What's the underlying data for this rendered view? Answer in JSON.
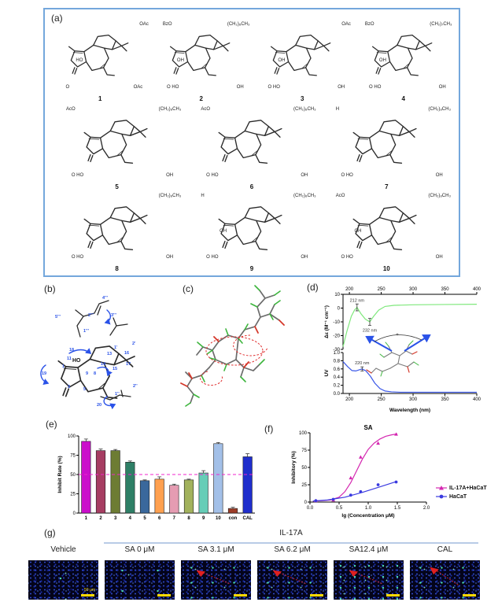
{
  "panels": {
    "a": {
      "label": "(a)",
      "compounds": [
        {
          "num": "1",
          "tl": "",
          "tr": "OAc",
          "ml": "HO",
          "bl": "O",
          "br": "OAc"
        },
        {
          "num": "2",
          "tl": "BzO",
          "tr": "(CH₂)₈CH₃",
          "ml": "OH",
          "bl": "O HO",
          "br": "OH"
        },
        {
          "num": "3",
          "tl": "",
          "tr": "OAc",
          "ml": "OH",
          "bl": "O HO",
          "br": "OH"
        },
        {
          "num": "4",
          "tl": "BzO",
          "tr": "(CH₂)₇CH₃",
          "ml": "OH",
          "bl": "O HO",
          "br": "OH"
        },
        {
          "num": "5",
          "tl": "AcO",
          "tr": "(CH₂)₈CH₃",
          "ml": "",
          "bl": "O HO",
          "br": "OH"
        },
        {
          "num": "6",
          "tl": "AcO",
          "tr": "(CH₂)₈CH₃",
          "ml": "",
          "bl": "O HO",
          "br": "OH"
        },
        {
          "num": "7",
          "tl": "H",
          "tr": "(CH₂)₈CH₃",
          "ml": "",
          "bl": "O HO",
          "br": "OH"
        },
        {
          "num": "8",
          "tl": "",
          "tr": "(CH₂)₈CH₃",
          "ml": "",
          "bl": "O HO",
          "br": "OH"
        },
        {
          "num": "9",
          "tl": "H",
          "tr": "(CH₂)₈CH₃",
          "ml": "OH",
          "bl": "O HO",
          "br": "OH"
        },
        {
          "num": "10",
          "tl": "AcO",
          "tr": "(CH₂)₈CH₃",
          "ml": "OH",
          "bl": "O HO",
          "br": "OH"
        }
      ]
    },
    "b": {
      "label": "(b)",
      "hydroxyl": "HO",
      "locants": [
        "4'''",
        "3'''",
        "2'''",
        "5'''",
        "1'''",
        "2'",
        "1'",
        "16",
        "13",
        "11",
        "18",
        "17",
        "15",
        "14",
        "9",
        "8",
        "1",
        "19",
        "3",
        "5",
        "2''",
        "1''",
        "20"
      ]
    },
    "c": {
      "label": "(c)"
    },
    "d": {
      "label": "(d)",
      "inset_plus": "+"
    },
    "e": {
      "label": "(e)"
    },
    "f": {
      "label": "(f)"
    },
    "g": {
      "label": "(g)",
      "group_title": "IL-17A",
      "columns": [
        "Vehicle",
        "SA 0 μM",
        "SA 3.1 μM",
        "SA 6.2 μM",
        "SA12.4 μM",
        "CAL"
      ],
      "scale_bar": "50 μm"
    }
  },
  "chart_data": [
    {
      "id": "cd",
      "type": "line",
      "xaxis": "top",
      "xlim": [
        190,
        400
      ],
      "ylim": [
        -30,
        10
      ],
      "xticks": [
        200,
        250,
        300,
        350,
        400
      ],
      "yticks": [
        10,
        0,
        -10,
        -20,
        -30
      ],
      "xtickfmt": 0,
      "ytickfmt": 0,
      "ylabel": "Δε (M⁻¹ cm⁻¹)",
      "series": [
        {
          "name": "CD",
          "color": "#7fe87c",
          "curve": [
            [
              190,
              -28
            ],
            [
              196,
              -17
            ],
            [
              203,
              -6
            ],
            [
              208,
              -1.5
            ],
            [
              212,
              0.5
            ],
            [
              218,
              -4
            ],
            [
              225,
              -8
            ],
            [
              232,
              -10
            ],
            [
              238,
              -6
            ],
            [
              246,
              -1.5
            ],
            [
              256,
              1.2
            ],
            [
              270,
              2
            ],
            [
              300,
              2.4
            ],
            [
              350,
              2.6
            ],
            [
              400,
              2.8
            ]
          ]
        }
      ],
      "annotations": [
        {
          "x": 212,
          "y": 0.5,
          "err": 2.5,
          "label": "212 nm",
          "pos": "above"
        },
        {
          "x": 232,
          "y": -10,
          "err": 2.5,
          "label": "232 nm",
          "pos": "below"
        }
      ]
    },
    {
      "id": "uv",
      "type": "line",
      "xaxis": "bottom",
      "xlim": [
        190,
        400
      ],
      "ylim": [
        0,
        1
      ],
      "xticks": [
        200,
        250,
        300,
        350,
        400
      ],
      "yticks": [
        1.0,
        0.8,
        0.6,
        0.4,
        0.2,
        0.0
      ],
      "xtickfmt": 0,
      "ytickfmt": 1,
      "ylabel": "UV",
      "xlabel": "Wavelength (nm)",
      "series": [
        {
          "name": "UV",
          "color": "#3a57e8",
          "curve": [
            [
              190,
              0.78
            ],
            [
              197,
              0.66
            ],
            [
              204,
              0.56
            ],
            [
              210,
              0.55
            ],
            [
              216,
              0.58
            ],
            [
              220,
              0.6
            ],
            [
              226,
              0.55
            ],
            [
              233,
              0.42
            ],
            [
              240,
              0.25
            ],
            [
              248,
              0.12
            ],
            [
              256,
              0.06
            ],
            [
              266,
              0.04
            ],
            [
              280,
              0.03
            ],
            [
              320,
              0.03
            ],
            [
              400,
              0.03
            ]
          ]
        }
      ],
      "annotations": [
        {
          "x": 220,
          "y": 0.6,
          "err": 0.05,
          "label": "220 nm",
          "pos": "above"
        }
      ]
    },
    {
      "id": "inhibit",
      "type": "bar",
      "ylabel": "Inhibit Rate (%)",
      "ylim": [
        0,
        100
      ],
      "yticks": [
        0,
        25,
        50,
        75,
        100
      ],
      "ytickfmt": 0,
      "categories": [
        "1",
        "2",
        "3",
        "4",
        "5",
        "6",
        "7",
        "8",
        "9",
        "10",
        "con",
        "CAL"
      ],
      "values": [
        93,
        81,
        81,
        66,
        42,
        44,
        36,
        43,
        52,
        90,
        6,
        73
      ],
      "errors": [
        3,
        2,
        1.5,
        1.5,
        1,
        3,
        1.5,
        1,
        3,
        1.5,
        1.5,
        4
      ],
      "colors": [
        "#cb0ecb",
        "#a63d62",
        "#6d7c33",
        "#2e7f66",
        "#3a689c",
        "#ffa04f",
        "#e59cb2",
        "#a2b25c",
        "#66cdb7",
        "#a3c0e8",
        "#9c3d28",
        "#1f2ecc"
      ],
      "refline": {
        "y": 50,
        "color": "#f224cc"
      }
    },
    {
      "id": "dose",
      "type": "line",
      "xaxis": "bottom",
      "title": "SA",
      "xlim": [
        0,
        2
      ],
      "ylim": [
        0,
        100
      ],
      "xticks": [
        0.0,
        0.5,
        1.0,
        1.5,
        2.0
      ],
      "yticks": [
        0,
        25,
        50,
        75,
        100
      ],
      "xtickfmt": 1,
      "ytickfmt": 0,
      "xlabel": "lg (Concentration μM)",
      "ylabel": "Inhibitory (%)",
      "series": [
        {
          "name": "IL-17A+HaCaT",
          "color": "#d427b0",
          "marker": "triangle",
          "points": [
            [
              0.1,
              2
            ],
            [
              0.4,
              3
            ],
            [
              0.7,
              35
            ],
            [
              0.87,
              65
            ],
            [
              1.17,
              85
            ],
            [
              1.48,
              98
            ]
          ],
          "curve": [
            [
              0.05,
              1.5
            ],
            [
              0.2,
              2
            ],
            [
              0.35,
              3
            ],
            [
              0.5,
              7
            ],
            [
              0.6,
              15
            ],
            [
              0.7,
              28
            ],
            [
              0.8,
              45
            ],
            [
              0.9,
              62
            ],
            [
              1.0,
              76
            ],
            [
              1.1,
              85
            ],
            [
              1.2,
              91
            ],
            [
              1.3,
              95
            ],
            [
              1.4,
              97
            ],
            [
              1.5,
              98.5
            ]
          ]
        },
        {
          "name": "HaCaT",
          "color": "#3a3ae0",
          "marker": "circle",
          "points": [
            [
              0.1,
              2
            ],
            [
              0.4,
              4
            ],
            [
              0.7,
              10
            ],
            [
              0.87,
              15
            ],
            [
              1.17,
              25
            ],
            [
              1.48,
              29
            ]
          ],
          "curve": [
            [
              0.05,
              1.5
            ],
            [
              0.3,
              3
            ],
            [
              0.6,
              7
            ],
            [
              0.9,
              14
            ],
            [
              1.2,
              22
            ],
            [
              1.5,
              30
            ]
          ]
        }
      ]
    }
  ]
}
